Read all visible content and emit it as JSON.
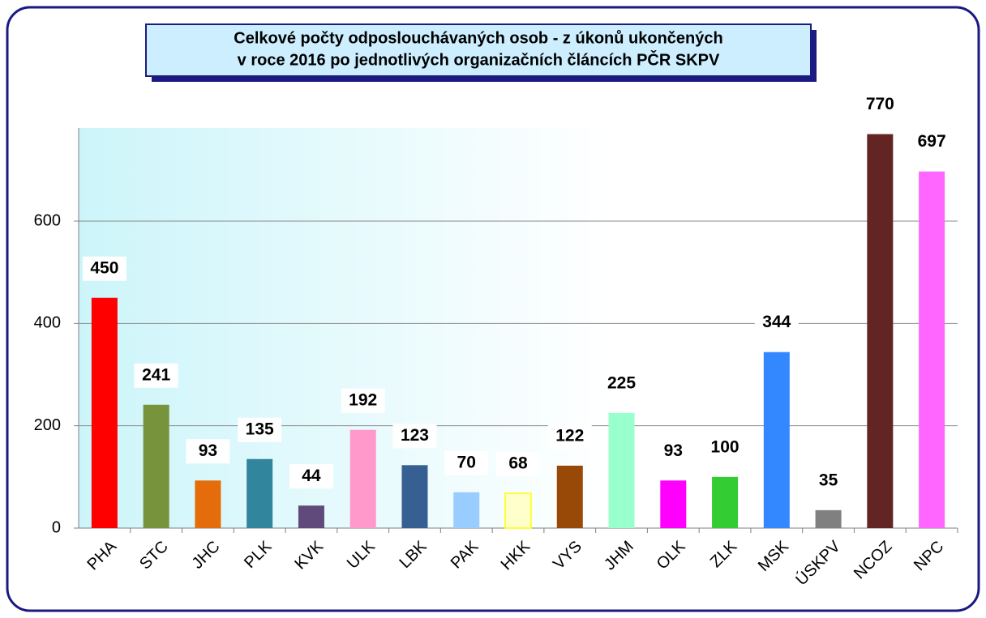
{
  "chart_data": {
    "type": "bar",
    "title": [
      "Celkové počty odposlouchávaných osob - z úkonů ukončených",
      "v roce 2016 po jednotlivých organizačních článcích PČR SKPV"
    ],
    "categories": [
      "PHA",
      "STC",
      "JHC",
      "PLK",
      "KVK",
      "ULK",
      "LBK",
      "PAK",
      "HKK",
      "VYS",
      "JHM",
      "OLK",
      "ZLK",
      "MSK",
      "ÚSKPV",
      "NCOZ",
      "NPC"
    ],
    "values": [
      450,
      241,
      93,
      135,
      44,
      192,
      123,
      70,
      68,
      122,
      225,
      93,
      100,
      344,
      35,
      770,
      697
    ],
    "colors": [
      "#ff0000",
      "#77933c",
      "#e46c0a",
      "#31859c",
      "#604a7b",
      "#ff99cc",
      "#376092",
      "#99ccff",
      "#ffffcc",
      "#984807",
      "#99ffcc",
      "#ff00ff",
      "#33cc33",
      "#3388ff",
      "#808080",
      "#632523",
      "#ff66ff"
    ],
    "ylim": [
      0,
      782
    ],
    "yticks": [
      0,
      200,
      400,
      600
    ],
    "grid": true
  }
}
